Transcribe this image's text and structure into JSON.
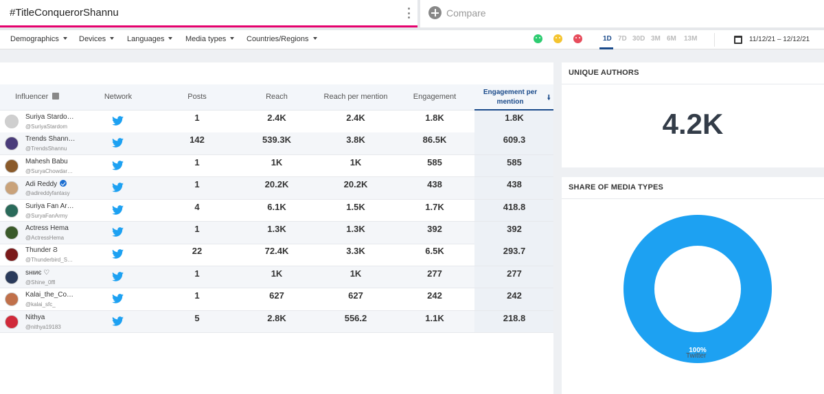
{
  "header": {
    "query": "#TitleConquerorShannu",
    "compare_label": "Compare"
  },
  "filters": {
    "items": [
      "Demographics",
      "Devices",
      "Languages",
      "Media types",
      "Countries/Regions"
    ],
    "sentiments": [
      "positive",
      "neutral",
      "negative"
    ],
    "ranges": [
      "1D",
      "7D",
      "30D",
      "3M",
      "6M",
      "13M"
    ],
    "active_range": "1D",
    "date_range": "11/12/21 – 12/12/21"
  },
  "table": {
    "columns": [
      "Influencer",
      "Network",
      "Posts",
      "Reach",
      "Reach per mention",
      "Engagement",
      "Engagement per mention"
    ],
    "sorted_column": "Engagement per mention",
    "rows": [
      {
        "name": "Suriya Stardo…",
        "handle": "@SuriyaStardom",
        "network": "twitter",
        "posts": "1",
        "reach": "2.4K",
        "reach_per_mention": "2.4K",
        "engagement": "1.8K",
        "engagement_per_mention": "1.8K",
        "avatar_color": "#cfcfcf"
      },
      {
        "name": "Trends Shann…",
        "handle": "@TrendsShannu",
        "network": "twitter",
        "posts": "142",
        "reach": "539.3K",
        "reach_per_mention": "3.8K",
        "engagement": "86.5K",
        "engagement_per_mention": "609.3",
        "avatar_color": "#4a3c7a"
      },
      {
        "name": "Mahesh Babu",
        "handle": "@SuryaChowdar…",
        "network": "twitter",
        "posts": "1",
        "reach": "1K",
        "reach_per_mention": "1K",
        "engagement": "585",
        "engagement_per_mention": "585",
        "avatar_color": "#8a5a2a"
      },
      {
        "name": "Adi Reddy",
        "handle": "@adireddyfantasy",
        "network": "twitter",
        "posts": "1",
        "reach": "20.2K",
        "reach_per_mention": "20.2K",
        "engagement": "438",
        "engagement_per_mention": "438",
        "avatar_color": "#c9a27a",
        "verified": true
      },
      {
        "name": "Suriya Fan Ar…",
        "handle": "@SuryaFanArmy",
        "network": "twitter",
        "posts": "4",
        "reach": "6.1K",
        "reach_per_mention": "1.5K",
        "engagement": "1.7K",
        "engagement_per_mention": "418.8",
        "avatar_color": "#2a6a5a"
      },
      {
        "name": "Actress Hema",
        "handle": "@ActressHema",
        "network": "twitter",
        "posts": "1",
        "reach": "1.3K",
        "reach_per_mention": "1.3K",
        "engagement": "392",
        "engagement_per_mention": "392",
        "avatar_color": "#3a5a2a"
      },
      {
        "name": "Thunder Ϩ",
        "handle": "@Thunderbird_S…",
        "network": "twitter",
        "posts": "22",
        "reach": "72.4K",
        "reach_per_mention": "3.3K",
        "engagement": "6.5K",
        "engagement_per_mention": "293.7",
        "avatar_color": "#7a1a1a"
      },
      {
        "name": "ѕнιиє ♡",
        "handle": "@Shine_0ffl",
        "network": "twitter",
        "posts": "1",
        "reach": "1K",
        "reach_per_mention": "1K",
        "engagement": "277",
        "engagement_per_mention": "277",
        "avatar_color": "#2a3a5a"
      },
      {
        "name": "Kalai_the_Co…",
        "handle": "@kalai_sfc_",
        "network": "twitter",
        "posts": "1",
        "reach": "627",
        "reach_per_mention": "627",
        "engagement": "242",
        "engagement_per_mention": "242",
        "avatar_color": "#c0704a"
      },
      {
        "name": "Nithya",
        "handle": "@nithya19183",
        "network": "twitter",
        "posts": "5",
        "reach": "2.8K",
        "reach_per_mention": "556.2",
        "engagement": "1.1K",
        "engagement_per_mention": "218.8",
        "avatar_color": "#d02a3a"
      }
    ]
  },
  "unique_authors": {
    "title": "UNIQUE AUTHORS",
    "value": "4.2K"
  },
  "media_types": {
    "title": "SHARE OF MEDIA TYPES",
    "chart_data": {
      "type": "pie",
      "categories": [
        "Twitter"
      ],
      "values": [
        100
      ],
      "labels": [
        "100%"
      ],
      "legend": "bottom",
      "colors": [
        "#1da1f2"
      ]
    }
  },
  "colors": {
    "accent": "#e5006d",
    "primary": "#1a4a8a",
    "twitter": "#1da1f2"
  }
}
